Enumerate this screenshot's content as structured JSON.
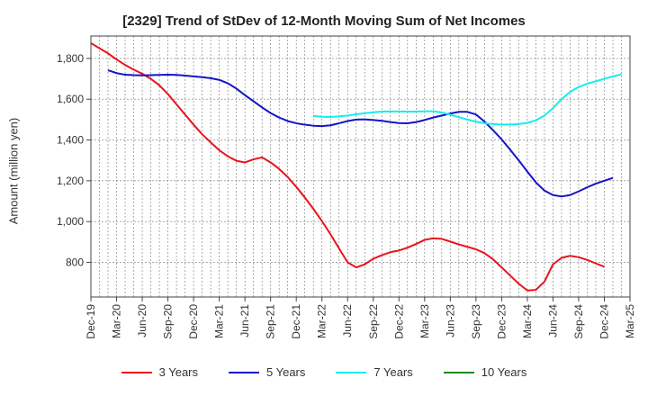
{
  "chart_data": {
    "type": "line",
    "title": "[2329]  Trend of StDev of 12-Month Moving Sum of Net Incomes",
    "xlabel": "",
    "ylabel": "Amount (million yen)",
    "x_tick_labels": [
      "Dec-19",
      "Mar-20",
      "Jun-20",
      "Sep-20",
      "Dec-20",
      "Mar-21",
      "Jun-21",
      "Sep-21",
      "Dec-21",
      "Mar-22",
      "Jun-22",
      "Sep-22",
      "Dec-22",
      "Mar-23",
      "Jun-23",
      "Sep-23",
      "Dec-23",
      "Mar-24",
      "Jun-24",
      "Sep-24",
      "Dec-24",
      "Mar-25"
    ],
    "y_ticks": [
      800,
      1000,
      1200,
      1400,
      1600,
      1800
    ],
    "y_tick_labels": [
      "800",
      "1,000",
      "1,200",
      "1,400",
      "1,600",
      "1,800"
    ],
    "ylim": [
      630,
      1910
    ],
    "grid": true,
    "legend_position": "bottom",
    "series": [
      {
        "name": "3 Years",
        "color": "#e8141c",
        "points": [
          [
            "Dec-19",
            1875
          ],
          [
            "Jan-20",
            1850
          ],
          [
            "Feb-20",
            1825
          ],
          [
            "Mar-20",
            1795
          ],
          [
            "Apr-20",
            1768
          ],
          [
            "May-20",
            1745
          ],
          [
            "Jun-20",
            1725
          ],
          [
            "Jul-20",
            1700
          ],
          [
            "Aug-20",
            1668
          ],
          [
            "Sep-20",
            1625
          ],
          [
            "Oct-20",
            1575
          ],
          [
            "Nov-20",
            1525
          ],
          [
            "Dec-20",
            1475
          ],
          [
            "Jan-21",
            1428
          ],
          [
            "Feb-21",
            1388
          ],
          [
            "Mar-21",
            1350
          ],
          [
            "Apr-21",
            1320
          ],
          [
            "May-21",
            1298
          ],
          [
            "Jun-21",
            1290
          ],
          [
            "Jul-21",
            1305
          ],
          [
            "Aug-21",
            1315
          ],
          [
            "Sep-21",
            1290
          ],
          [
            "Oct-21",
            1258
          ],
          [
            "Nov-21",
            1218
          ],
          [
            "Dec-21",
            1170
          ],
          [
            "Jan-22",
            1118
          ],
          [
            "Feb-22",
            1062
          ],
          [
            "Mar-22",
            1002
          ],
          [
            "Apr-22",
            938
          ],
          [
            "May-22",
            868
          ],
          [
            "Jun-22",
            800
          ],
          [
            "Jul-22",
            775
          ],
          [
            "Aug-22",
            790
          ],
          [
            "Sep-22",
            818
          ],
          [
            "Oct-22",
            835
          ],
          [
            "Nov-22",
            850
          ],
          [
            "Dec-22",
            858
          ],
          [
            "Jan-23",
            872
          ],
          [
            "Feb-23",
            890
          ],
          [
            "Mar-23",
            910
          ],
          [
            "Apr-23",
            918
          ],
          [
            "May-23",
            915
          ],
          [
            "Jun-23",
            902
          ],
          [
            "Jul-23",
            888
          ],
          [
            "Aug-23",
            876
          ],
          [
            "Sep-23",
            864
          ],
          [
            "Oct-23",
            845
          ],
          [
            "Nov-23",
            815
          ],
          [
            "Dec-23",
            775
          ],
          [
            "Jan-24",
            735
          ],
          [
            "Feb-24",
            695
          ],
          [
            "Mar-24",
            662
          ],
          [
            "Apr-24",
            665
          ],
          [
            "May-24",
            705
          ],
          [
            "Jun-24",
            790
          ],
          [
            "Jul-24",
            822
          ],
          [
            "Aug-24",
            832
          ],
          [
            "Sep-24",
            825
          ],
          [
            "Oct-24",
            812
          ],
          [
            "Nov-24",
            795
          ],
          [
            "Dec-24",
            778
          ]
        ]
      },
      {
        "name": "5 Years",
        "color": "#1414c8",
        "points": [
          [
            "Feb-20",
            1742
          ],
          [
            "Mar-20",
            1728
          ],
          [
            "Apr-20",
            1720
          ],
          [
            "May-20",
            1718
          ],
          [
            "Jun-20",
            1717
          ],
          [
            "Jul-20",
            1718
          ],
          [
            "Aug-20",
            1719
          ],
          [
            "Sep-20",
            1720
          ],
          [
            "Oct-20",
            1719
          ],
          [
            "Nov-20",
            1716
          ],
          [
            "Dec-20",
            1712
          ],
          [
            "Jan-21",
            1708
          ],
          [
            "Feb-21",
            1703
          ],
          [
            "Mar-21",
            1695
          ],
          [
            "Apr-21",
            1678
          ],
          [
            "May-21",
            1652
          ],
          [
            "Jun-21",
            1620
          ],
          [
            "Jul-21",
            1590
          ],
          [
            "Aug-21",
            1560
          ],
          [
            "Sep-21",
            1532
          ],
          [
            "Oct-21",
            1510
          ],
          [
            "Nov-21",
            1493
          ],
          [
            "Dec-21",
            1482
          ],
          [
            "Jan-22",
            1475
          ],
          [
            "Feb-22",
            1470
          ],
          [
            "Mar-22",
            1468
          ],
          [
            "Apr-22",
            1472
          ],
          [
            "May-22",
            1482
          ],
          [
            "Jun-22",
            1493
          ],
          [
            "Jul-22",
            1500
          ],
          [
            "Aug-22",
            1501
          ],
          [
            "Sep-22",
            1498
          ],
          [
            "Oct-22",
            1494
          ],
          [
            "Nov-22",
            1488
          ],
          [
            "Dec-22",
            1483
          ],
          [
            "Jan-23",
            1482
          ],
          [
            "Feb-23",
            1488
          ],
          [
            "Mar-23",
            1498
          ],
          [
            "Apr-23",
            1510
          ],
          [
            "May-23",
            1520
          ],
          [
            "Jun-23",
            1530
          ],
          [
            "Jul-23",
            1538
          ],
          [
            "Aug-23",
            1538
          ],
          [
            "Sep-23",
            1525
          ],
          [
            "Oct-23",
            1490
          ],
          [
            "Nov-23",
            1448
          ],
          [
            "Dec-23",
            1403
          ],
          [
            "Jan-24",
            1352
          ],
          [
            "Feb-24",
            1300
          ],
          [
            "Mar-24",
            1245
          ],
          [
            "Apr-24",
            1192
          ],
          [
            "May-24",
            1152
          ],
          [
            "Jun-24",
            1130
          ],
          [
            "Jul-24",
            1123
          ],
          [
            "Aug-24",
            1130
          ],
          [
            "Sep-24",
            1148
          ],
          [
            "Oct-24",
            1168
          ],
          [
            "Nov-24",
            1186
          ],
          [
            "Dec-24",
            1200
          ],
          [
            "Jan-25",
            1214
          ]
        ]
      },
      {
        "name": "7 Years",
        "color": "#14eeee",
        "points": [
          [
            "Feb-22",
            1518
          ],
          [
            "Mar-22",
            1514
          ],
          [
            "Apr-22",
            1513
          ],
          [
            "May-22",
            1516
          ],
          [
            "Jun-22",
            1520
          ],
          [
            "Jul-22",
            1526
          ],
          [
            "Aug-22",
            1531
          ],
          [
            "Sep-22",
            1536
          ],
          [
            "Oct-22",
            1539
          ],
          [
            "Nov-22",
            1540
          ],
          [
            "Dec-22",
            1540
          ],
          [
            "Jan-23",
            1539
          ],
          [
            "Feb-23",
            1539
          ],
          [
            "Mar-23",
            1541
          ],
          [
            "Apr-23",
            1541
          ],
          [
            "May-23",
            1535
          ],
          [
            "Jun-23",
            1524
          ],
          [
            "Jul-23",
            1512
          ],
          [
            "Aug-23",
            1500
          ],
          [
            "Sep-23",
            1490
          ],
          [
            "Oct-23",
            1482
          ],
          [
            "Nov-23",
            1478
          ],
          [
            "Dec-23",
            1476
          ],
          [
            "Jan-24",
            1476
          ],
          [
            "Feb-24",
            1478
          ],
          [
            "Mar-24",
            1484
          ],
          [
            "Apr-24",
            1496
          ],
          [
            "May-24",
            1520
          ],
          [
            "Jun-24",
            1556
          ],
          [
            "Jul-24",
            1600
          ],
          [
            "Aug-24",
            1636
          ],
          [
            "Sep-24",
            1660
          ],
          [
            "Oct-24",
            1676
          ],
          [
            "Nov-24",
            1688
          ],
          [
            "Dec-24",
            1700
          ],
          [
            "Jan-25",
            1712
          ],
          [
            "Feb-25",
            1722
          ]
        ]
      },
      {
        "name": "10 Years",
        "color": "#1a8a1a",
        "points": []
      }
    ]
  }
}
